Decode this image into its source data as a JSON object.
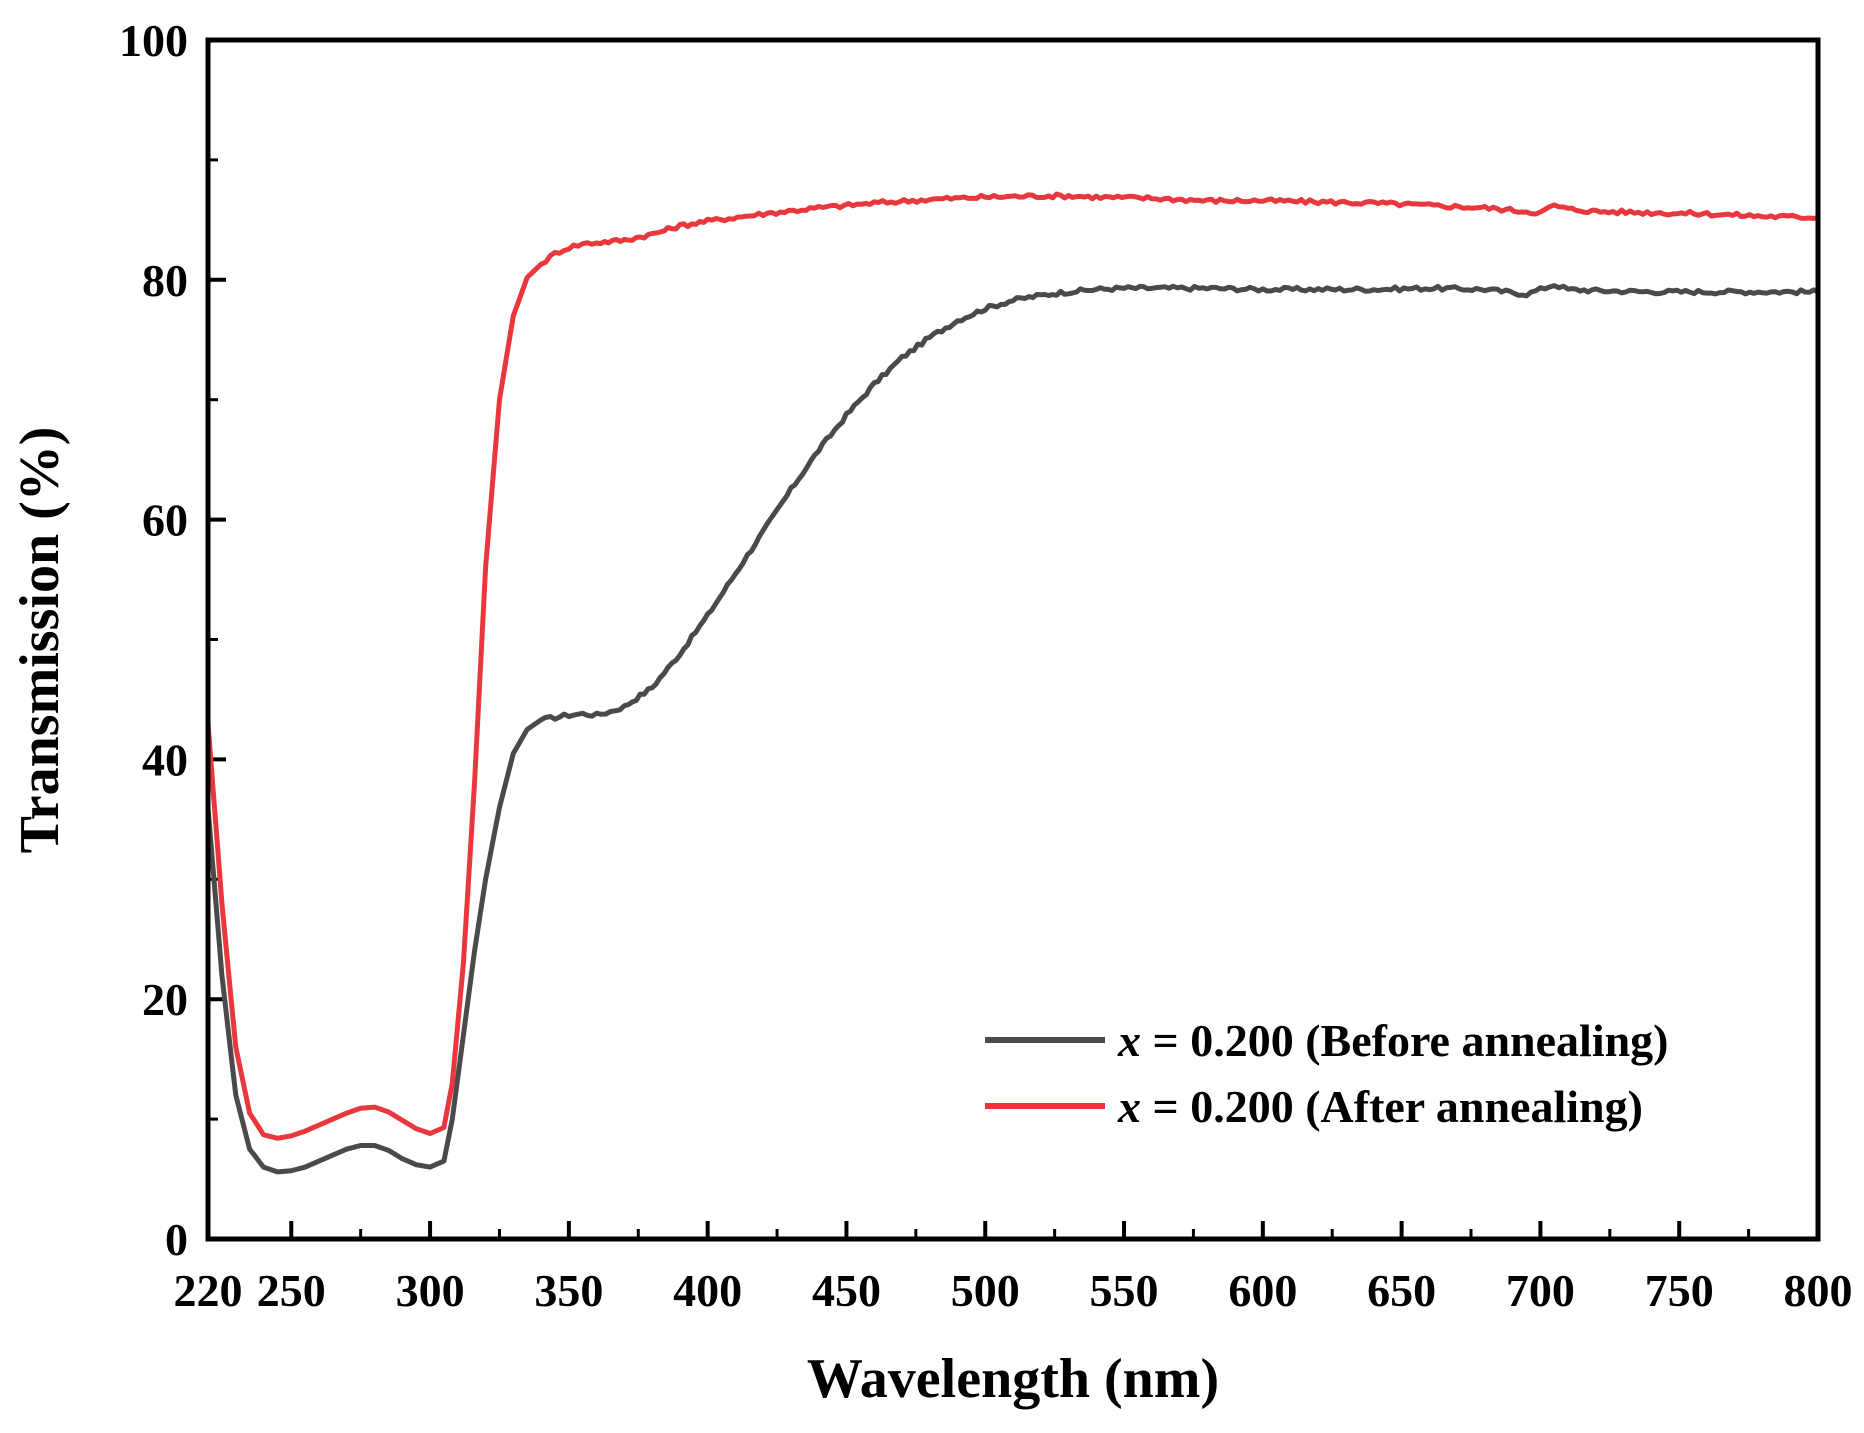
{
  "chart_data": {
    "type": "line",
    "title": "",
    "xlabel": "Wavelength (nm)",
    "ylabel": "Transmission (%)",
    "xlim": [
      220,
      800
    ],
    "ylim": [
      0,
      100
    ],
    "xticks": [
      220,
      250,
      300,
      350,
      400,
      450,
      500,
      550,
      600,
      650,
      700,
      750,
      800
    ],
    "x_tick_labels": [
      "220",
      "250",
      "300",
      "350",
      "400",
      "450",
      "500",
      "550",
      "600",
      "650",
      "700",
      "750",
      "800"
    ],
    "yticks": [
      0,
      20,
      40,
      60,
      80,
      100
    ],
    "y_tick_labels": [
      "0",
      "20",
      "40",
      "60",
      "80",
      "100"
    ],
    "grid": false,
    "legend_position": "bottom-right",
    "series": [
      {
        "name": "x = 0.200 (Before annealing)",
        "legend_var": "x",
        "legend_rest": " = 0.200 (Before annealing)",
        "color": "#4a4a4a",
        "x": [
          220,
          225,
          230,
          235,
          240,
          245,
          250,
          255,
          260,
          265,
          270,
          275,
          280,
          285,
          290,
          295,
          300,
          305,
          308,
          312,
          316,
          320,
          325,
          330,
          335,
          340,
          345,
          350,
          355,
          360,
          365,
          370,
          380,
          390,
          400,
          410,
          420,
          430,
          440,
          450,
          460,
          470,
          480,
          490,
          500,
          510,
          520,
          530,
          540,
          550,
          560,
          580,
          600,
          620,
          640,
          660,
          680,
          695,
          700,
          705,
          710,
          720,
          740,
          760,
          780,
          800
        ],
        "y": [
          36,
          22,
          12,
          7.5,
          6,
          5.6,
          5.7,
          6,
          6.5,
          7,
          7.5,
          7.8,
          7.8,
          7.4,
          6.7,
          6.2,
          6,
          6.5,
          10,
          17,
          24,
          30,
          36,
          40.5,
          42.5,
          43.3,
          43.5,
          43.7,
          43.8,
          43.7,
          44,
          44.4,
          46,
          48.8,
          52,
          55.5,
          59,
          62.5,
          65.8,
          68.7,
          71.3,
          73.5,
          75.2,
          76.6,
          77.6,
          78.3,
          78.7,
          79,
          79.2,
          79.3,
          79.3,
          79.3,
          79.2,
          79.2,
          79.2,
          79.3,
          79.2,
          78.8,
          79.2,
          79.6,
          79.2,
          79.1,
          79.0,
          79.0,
          79.0,
          79.0
        ]
      },
      {
        "name": "x = 0.200 (After annealing)",
        "legend_var": "x",
        "legend_rest": " = 0.200 (After annealing)",
        "color": "#e8383d",
        "x": [
          220,
          225,
          230,
          235,
          240,
          245,
          250,
          255,
          260,
          265,
          270,
          275,
          280,
          285,
          290,
          295,
          300,
          305,
          308,
          312,
          316,
          320,
          325,
          330,
          335,
          340,
          345,
          350,
          355,
          360,
          370,
          380,
          390,
          400,
          420,
          440,
          460,
          480,
          500,
          520,
          530,
          540,
          560,
          580,
          600,
          620,
          640,
          660,
          680,
          695,
          700,
          705,
          710,
          720,
          740,
          760,
          780,
          800
        ],
        "y": [
          43,
          28,
          16,
          10.5,
          8.7,
          8.4,
          8.6,
          9,
          9.5,
          10,
          10.5,
          10.9,
          11,
          10.6,
          9.9,
          9.2,
          8.8,
          9.3,
          13,
          23,
          38,
          56,
          70,
          77,
          80.2,
          81.3,
          82.2,
          82.7,
          83,
          83.1,
          83.3,
          83.8,
          84.5,
          84.9,
          85.5,
          86,
          86.4,
          86.7,
          86.9,
          87.0,
          87.0,
          86.9,
          86.8,
          86.6,
          86.6,
          86.5,
          86.4,
          86.2,
          86.0,
          85.7,
          85.6,
          86.2,
          85.9,
          85.7,
          85.6,
          85.5,
          85.3,
          85.2
        ]
      }
    ]
  }
}
